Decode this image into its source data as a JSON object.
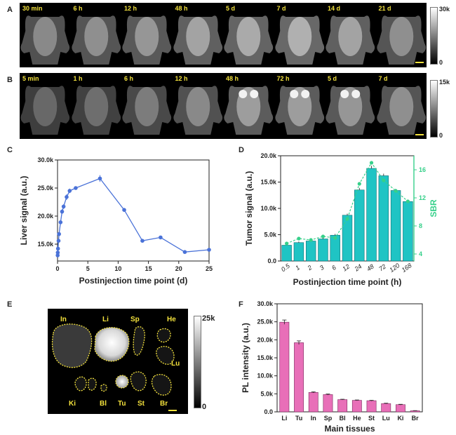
{
  "panel_letters": {
    "a": "A",
    "b": "B",
    "c": "C",
    "d": "D",
    "e": "E",
    "f": "F"
  },
  "panelA": {
    "labels": [
      "30 min",
      "6 h",
      "12 h",
      "48 h",
      "5 d",
      "7 d",
      "14 d",
      "21 d"
    ],
    "cbar_max": "30k",
    "cbar_min": "0",
    "brightness": [
      0.55,
      0.6,
      0.65,
      0.75,
      0.8,
      0.85,
      0.75,
      0.6
    ]
  },
  "panelB": {
    "labels": [
      "5 min",
      "1 h",
      "6 h",
      "12 h",
      "48 h",
      "72 h",
      "5 d",
      "7 d"
    ],
    "cbar_max": "15k",
    "cbar_min": "0",
    "brightness": [
      0.3,
      0.35,
      0.45,
      0.55,
      0.7,
      0.7,
      0.65,
      0.6
    ]
  },
  "panelE": {
    "organs": [
      "In",
      "Li",
      "Sp",
      "He",
      "Lu",
      "Ki",
      "Bl",
      "Tu",
      "St",
      "Br"
    ],
    "cbar_max": "25k",
    "cbar_min": "0"
  },
  "chart_data": [
    {
      "id": "C",
      "type": "line",
      "title": "",
      "xlabel": "Postinjection time point (d)",
      "ylabel": "Liver signal (a.u.)",
      "xlim": [
        0,
        25
      ],
      "ylim": [
        12000,
        30000
      ],
      "xticks": [
        0,
        5,
        10,
        15,
        20,
        25
      ],
      "xtick_labels": [
        "0",
        "5",
        "10",
        "15",
        "20",
        "25"
      ],
      "yticks": [
        15000,
        20000,
        25000,
        30000
      ],
      "ytick_labels": [
        "15.0k",
        "20.0k",
        "25.0k",
        "30.0k"
      ],
      "color": "#4a72d8",
      "series": [
        {
          "x": [
            0.02,
            0.04,
            0.08,
            0.17,
            0.25,
            0.5,
            0.75,
            1,
            1.5,
            2,
            3,
            7,
            11,
            14,
            17,
            21,
            25
          ],
          "y": [
            13000,
            13500,
            14200,
            15600,
            16800,
            18900,
            20800,
            21700,
            23400,
            24500,
            25000,
            26700,
            21100,
            15600,
            16200,
            13600,
            14000
          ],
          "err": [
            200,
            200,
            200,
            200,
            300,
            300,
            400,
            400,
            500,
            400,
            300,
            600,
            300,
            200,
            200,
            200,
            200
          ]
        }
      ]
    },
    {
      "id": "D",
      "type": "bar",
      "title": "",
      "xlabel": "Postinjection time point  (h)",
      "ylabel": "Tumor signal (a.u.)",
      "ylabel2": "SBR",
      "categories": [
        "0.5",
        "1",
        "2",
        "3",
        "6",
        "12",
        "24",
        "48",
        "72",
        "120",
        "168"
      ],
      "ylim": [
        0,
        20000
      ],
      "yticks": [
        0,
        5000,
        10000,
        15000,
        20000
      ],
      "ytick_labels": [
        "0.0",
        "5.0k",
        "10.0k",
        "15.0k",
        "20.0k"
      ],
      "y2lim": [
        3,
        18
      ],
      "y2ticks": [
        4,
        8,
        12,
        16
      ],
      "y2tick_labels": [
        "4",
        "8",
        "12",
        "16"
      ],
      "bar_color": "#1fc4c4",
      "line_color": "#36d08a",
      "series": [
        {
          "name": "",
          "values": [
            3000,
            3500,
            3800,
            4200,
            4900,
            8700,
            13500,
            17600,
            16200,
            13400,
            11300
          ],
          "err": [
            200,
            200,
            200,
            200,
            250,
            300,
            400,
            500,
            400,
            300,
            300
          ]
        },
        {
          "name": "",
          "axis": "right",
          "values": [
            5.5,
            6.2,
            6.0,
            6.5,
            6.3,
            9.0,
            14.0,
            17.0,
            14.5,
            13.0,
            11.5
          ]
        }
      ]
    },
    {
      "id": "F",
      "type": "bar",
      "title": "",
      "xlabel": "Main tissues",
      "ylabel": "PL intensity (a.u.)",
      "categories": [
        "Li",
        "Tu",
        "In",
        "Sp",
        "Bl",
        "He",
        "St",
        "Lu",
        "Ki",
        "Br"
      ],
      "ylim": [
        0,
        30000
      ],
      "yticks": [
        0,
        5000,
        10000,
        15000,
        20000,
        25000,
        30000
      ],
      "ytick_labels": [
        "0.0",
        "5.0k",
        "10.0k",
        "15.0k",
        "20.0k",
        "25.0k",
        "30.0k"
      ],
      "bar_color": "#e86fb8",
      "series": [
        {
          "name": "",
          "values": [
            24900,
            19200,
            5400,
            4800,
            3400,
            3200,
            3100,
            2300,
            2000,
            300
          ],
          "err": [
            600,
            500,
            150,
            150,
            100,
            100,
            100,
            100,
            100,
            50
          ]
        }
      ]
    }
  ]
}
